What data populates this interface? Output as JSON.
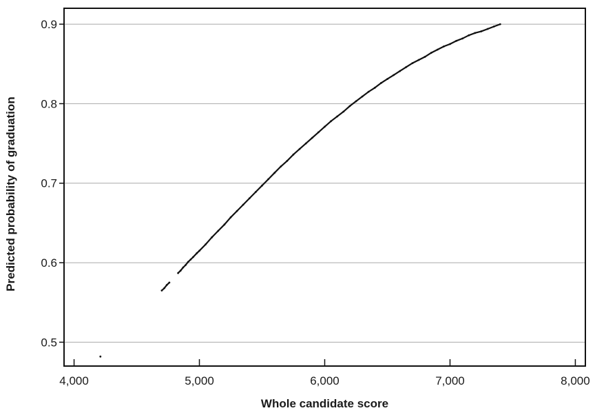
{
  "chart_data": {
    "type": "scatter",
    "title": "",
    "xlabel": "Whole candidate score",
    "ylabel": "Predicted probability of graduation",
    "xlim": [
      3920,
      8080
    ],
    "ylim": [
      0.47,
      0.92
    ],
    "x_ticks": [
      {
        "value": 4000,
        "label": "4,000"
      },
      {
        "value": 5000,
        "label": "5,000"
      },
      {
        "value": 6000,
        "label": "6,000"
      },
      {
        "value": 7000,
        "label": "7,000"
      },
      {
        "value": 8000,
        "label": "8,000"
      }
    ],
    "y_ticks": [
      {
        "value": 0.5,
        "label": "0.5"
      },
      {
        "value": 0.6,
        "label": "0.6"
      },
      {
        "value": 0.7,
        "label": "0.7"
      },
      {
        "value": 0.8,
        "label": "0.8"
      },
      {
        "value": 0.9,
        "label": "0.9"
      }
    ],
    "grid": "horizontal",
    "legend": "none",
    "series": [
      {
        "color": "#111111",
        "points": [
          [
            4210,
            0.482
          ],
          [
            4700,
            0.565
          ],
          [
            4720,
            0.568
          ],
          [
            4740,
            0.572
          ],
          [
            4760,
            0.575
          ],
          [
            4830,
            0.587
          ],
          [
            4850,
            0.59
          ],
          [
            4870,
            0.594
          ],
          [
            4890,
            0.597
          ],
          [
            4910,
            0.601
          ],
          [
            4930,
            0.604
          ],
          [
            4950,
            0.607
          ],
          [
            4980,
            0.612
          ],
          [
            5000,
            0.615
          ],
          [
            5050,
            0.623
          ],
          [
            5100,
            0.632
          ],
          [
            5150,
            0.64
          ],
          [
            5200,
            0.648
          ],
          [
            5250,
            0.657
          ],
          [
            5300,
            0.665
          ],
          [
            5350,
            0.673
          ],
          [
            5400,
            0.681
          ],
          [
            5450,
            0.689
          ],
          [
            5500,
            0.697
          ],
          [
            5550,
            0.705
          ],
          [
            5600,
            0.713
          ],
          [
            5650,
            0.721
          ],
          [
            5700,
            0.728
          ],
          [
            5750,
            0.736
          ],
          [
            5800,
            0.743
          ],
          [
            5850,
            0.75
          ],
          [
            5900,
            0.757
          ],
          [
            5950,
            0.764
          ],
          [
            6000,
            0.771
          ],
          [
            6050,
            0.778
          ],
          [
            6100,
            0.784
          ],
          [
            6150,
            0.79
          ],
          [
            6200,
            0.797
          ],
          [
            6250,
            0.803
          ],
          [
            6300,
            0.809
          ],
          [
            6350,
            0.815
          ],
          [
            6400,
            0.82
          ],
          [
            6450,
            0.826
          ],
          [
            6500,
            0.831
          ],
          [
            6550,
            0.836
          ],
          [
            6600,
            0.841
          ],
          [
            6650,
            0.846
          ],
          [
            6700,
            0.851
          ],
          [
            6750,
            0.855
          ],
          [
            6800,
            0.859
          ],
          [
            6850,
            0.864
          ],
          [
            6900,
            0.868
          ],
          [
            6950,
            0.872
          ],
          [
            7000,
            0.875
          ],
          [
            7050,
            0.879
          ],
          [
            7100,
            0.882
          ],
          [
            7150,
            0.886
          ],
          [
            7200,
            0.889
          ],
          [
            7250,
            0.891
          ],
          [
            7300,
            0.894
          ],
          [
            7350,
            0.897
          ],
          [
            7400,
            0.9
          ]
        ]
      }
    ]
  }
}
